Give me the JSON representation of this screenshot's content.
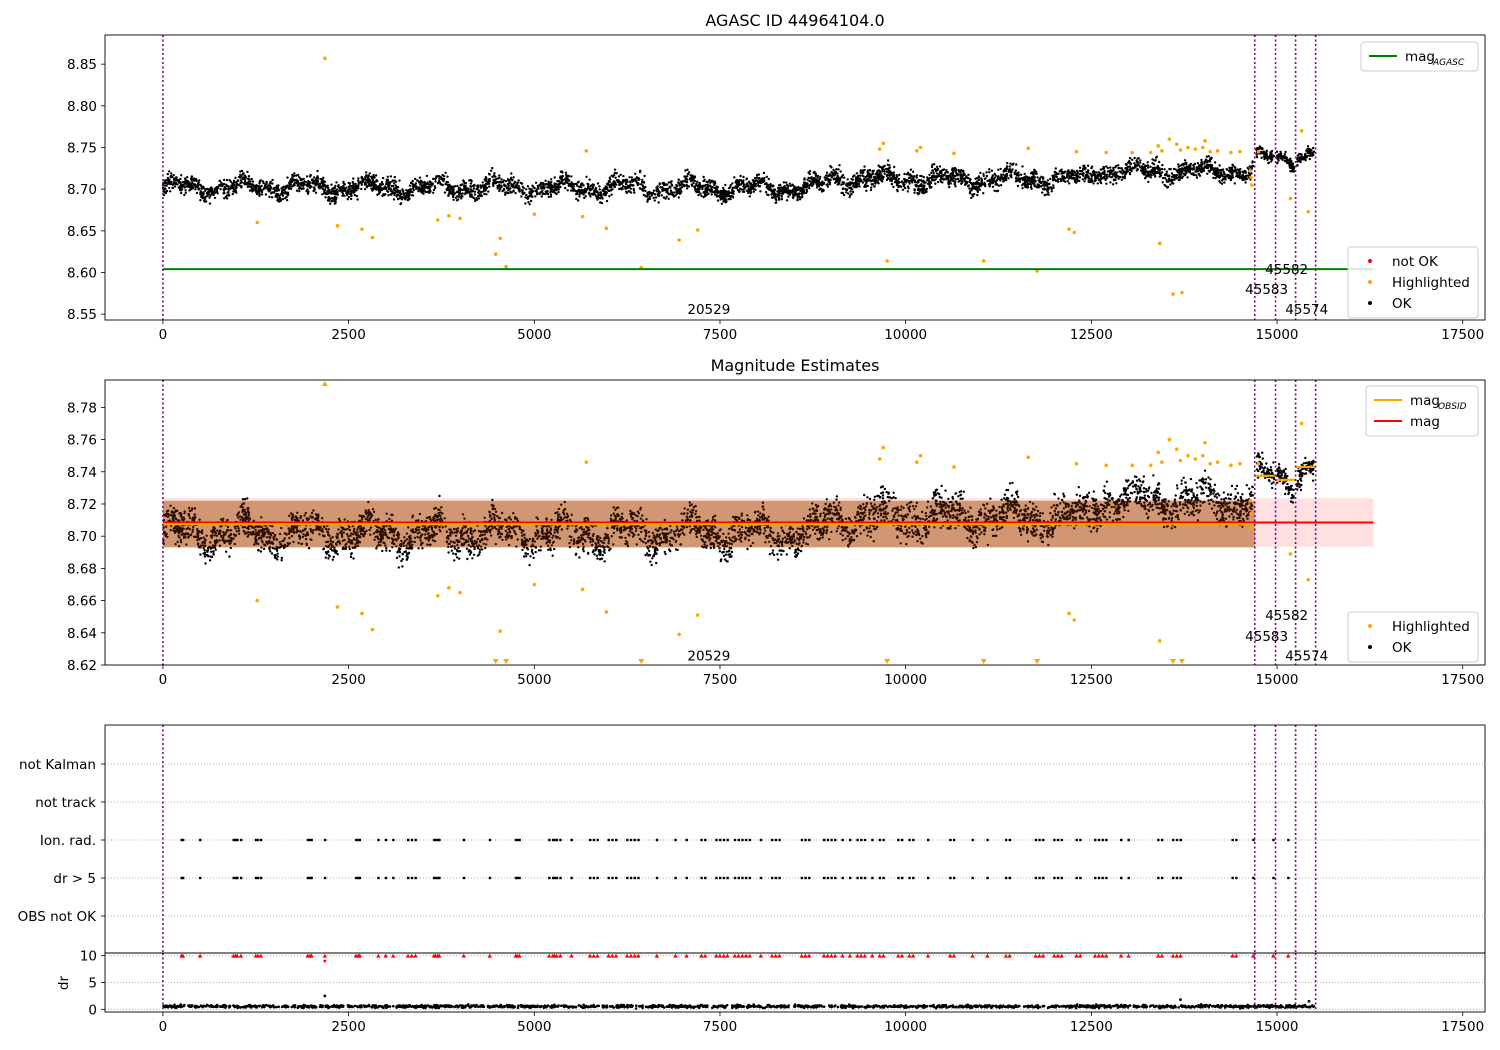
{
  "chart_data": [
    {
      "type": "scatter",
      "title": "AGASC ID 44964104.0",
      "xlim": [
        -780,
        17800
      ],
      "ylim": [
        8.543,
        8.885
      ],
      "xticks": [
        0,
        2500,
        5000,
        7500,
        10000,
        12500,
        15000,
        17500
      ],
      "yticks": [
        8.55,
        8.6,
        8.65,
        8.7,
        8.75,
        8.8,
        8.85
      ],
      "ytick_decimals": 2,
      "obs_lines": [
        0,
        14700,
        14980,
        15250,
        15520
      ],
      "obs_labels": [
        {
          "text": "20529",
          "x": 7350,
          "y": 8.556
        },
        {
          "text": "45582",
          "x": 15130,
          "y": 8.604
        },
        {
          "text": "45583",
          "x": 14860,
          "y": 8.58
        },
        {
          "text": "45574",
          "x": 15400,
          "y": 8.556
        }
      ],
      "hlines": [
        {
          "name": "mag_AGASC",
          "value": 8.604,
          "color": "#008000",
          "x_end": 16300
        }
      ],
      "legends": [
        {
          "loc": "upper right",
          "items": [
            {
              "label": "mag",
              "sub": "AGASC",
              "kind": "line",
              "color": "#008000"
            }
          ]
        },
        {
          "loc": "lower right",
          "items": [
            {
              "label": "not OK",
              "kind": "dot",
              "color": "#ff0000"
            },
            {
              "label": "Highlighted",
              "kind": "dot",
              "color": "#ffa500"
            },
            {
              "label": "OK",
              "kind": "dot",
              "color": "#000000"
            }
          ]
        }
      ],
      "series": [
        {
          "name": "OK",
          "color": "#000000",
          "segments": [
            {
              "x_start": 0,
              "x_end": 8900,
              "mean": 8.702,
              "spread": 0.012
            },
            {
              "x_start": 8900,
              "x_end": 12500,
              "mean": 8.712,
              "spread": 0.013
            },
            {
              "x_start": 12500,
              "x_end": 14680,
              "mean": 8.722,
              "spread": 0.012
            },
            {
              "x_start": 14720,
              "x_end": 14960,
              "mean": 8.737,
              "spread": 0.008
            },
            {
              "x_start": 15000,
              "x_end": 15230,
              "mean": 8.735,
              "spread": 0.008
            },
            {
              "x_start": 15270,
              "x_end": 15500,
              "mean": 8.743,
              "spread": 0.008
            }
          ]
        },
        {
          "name": "Highlighted",
          "color": "#ffa500",
          "points": [
            [
              1270,
              8.66
            ],
            [
              2180,
              8.857
            ],
            [
              2350,
              8.656
            ],
            [
              2680,
              8.652
            ],
            [
              2820,
              8.642
            ],
            [
              3700,
              8.663
            ],
            [
              3850,
              8.668
            ],
            [
              4000,
              8.665
            ],
            [
              4480,
              8.622
            ],
            [
              4540,
              8.641
            ],
            [
              4620,
              8.607
            ],
            [
              5000,
              8.67
            ],
            [
              5650,
              8.667
            ],
            [
              5700,
              8.746
            ],
            [
              5970,
              8.653
            ],
            [
              6440,
              8.606
            ],
            [
              6950,
              8.639
            ],
            [
              7200,
              8.651
            ],
            [
              9650,
              8.748
            ],
            [
              9700,
              8.755
            ],
            [
              9750,
              8.614
            ],
            [
              10150,
              8.746
            ],
            [
              10200,
              8.75
            ],
            [
              10650,
              8.743
            ],
            [
              11050,
              8.614
            ],
            [
              11650,
              8.749
            ],
            [
              11770,
              8.602
            ],
            [
              12200,
              8.652
            ],
            [
              12270,
              8.648
            ],
            [
              12300,
              8.745
            ],
            [
              12700,
              8.744
            ],
            [
              13050,
              8.744
            ],
            [
              13300,
              8.744
            ],
            [
              13400,
              8.752
            ],
            [
              13420,
              8.635
            ],
            [
              13450,
              8.746
            ],
            [
              13600,
              8.574
            ],
            [
              13650,
              8.754
            ],
            [
              13700,
              8.747
            ],
            [
              13720,
              8.576
            ],
            [
              13800,
              8.75
            ],
            [
              13900,
              8.748
            ],
            [
              14000,
              8.75
            ],
            [
              14100,
              8.745
            ],
            [
              14200,
              8.746
            ],
            [
              14380,
              8.744
            ],
            [
              14500,
              8.745
            ],
            [
              14640,
              8.722
            ],
            [
              14650,
              8.714
            ],
            [
              14660,
              8.705
            ],
            [
              14750,
              8.745
            ],
            [
              15180,
              8.689
            ],
            [
              15330,
              8.77
            ],
            [
              15420,
              8.673
            ],
            [
              14030,
              8.758
            ],
            [
              13550,
              8.76
            ]
          ]
        }
      ]
    },
    {
      "type": "scatter",
      "title": "Magnitude Estimates",
      "xlim": [
        -780,
        17800
      ],
      "ylim": [
        8.62,
        8.797
      ],
      "xticks": [
        0,
        2500,
        5000,
        7500,
        10000,
        12500,
        15000,
        17500
      ],
      "yticks": [
        8.62,
        8.64,
        8.66,
        8.68,
        8.7,
        8.72,
        8.74,
        8.76,
        8.78
      ],
      "ytick_decimals": 2,
      "obs_lines": [
        0,
        14700,
        14980,
        15250,
        15520
      ],
      "obs_labels": [
        {
          "text": "20529",
          "x": 7350,
          "y": 8.626
        },
        {
          "text": "45582",
          "x": 15130,
          "y": 8.651
        },
        {
          "text": "45583",
          "x": 14860,
          "y": 8.638
        },
        {
          "text": "45574",
          "x": 15400,
          "y": 8.626
        }
      ],
      "hlines": [
        {
          "name": "mag",
          "value": 8.7085,
          "color": "#ff0000",
          "x_end": 16300
        }
      ],
      "bands": [
        {
          "name": "mag_band",
          "y0": 8.6935,
          "y1": 8.7235,
          "x_start": 0,
          "x_end": 16300,
          "color": "rgba(255,0,0,0.12)"
        },
        {
          "name": "mag_obsid_band",
          "y0": 8.693,
          "y1": 8.722,
          "x_start": 0,
          "x_end": 14700,
          "color": "rgba(255,165,0,0.22)"
        }
      ],
      "step_lines": [
        {
          "name": "mag_OBSID",
          "color": "#ffa500",
          "segments": [
            [
              0,
              14700,
              8.7075
            ],
            [
              14700,
              14980,
              8.7375
            ],
            [
              14980,
              15250,
              8.735
            ],
            [
              15250,
              15520,
              8.743
            ]
          ]
        }
      ],
      "legends": [
        {
          "loc": "upper right",
          "items": [
            {
              "label": "mag",
              "sub": "OBSID",
              "kind": "line",
              "color": "#ffa500"
            },
            {
              "label": "mag",
              "kind": "line",
              "color": "#ff0000"
            }
          ]
        },
        {
          "loc": "lower right",
          "items": [
            {
              "label": "Highlighted",
              "kind": "dot",
              "color": "#ffa500"
            },
            {
              "label": "OK",
              "kind": "dot",
              "color": "#000000"
            }
          ]
        }
      ],
      "series": [
        {
          "name": "OK",
          "color": "#000000",
          "segments": [
            {
              "x_start": 0,
              "x_end": 8900,
              "mean": 8.702,
              "spread": 0.012
            },
            {
              "x_start": 8900,
              "x_end": 12500,
              "mean": 8.712,
              "spread": 0.013
            },
            {
              "x_start": 12500,
              "x_end": 14680,
              "mean": 8.722,
              "spread": 0.012
            },
            {
              "x_start": 14720,
              "x_end": 14960,
              "mean": 8.737,
              "spread": 0.008
            },
            {
              "x_start": 15000,
              "x_end": 15230,
              "mean": 8.735,
              "spread": 0.008
            },
            {
              "x_start": 15270,
              "x_end": 15500,
              "mean": 8.743,
              "spread": 0.008
            }
          ]
        },
        {
          "name": "Highlighted",
          "color": "#ffa500",
          "points": [
            [
              1270,
              8.66
            ],
            [
              2350,
              8.656
            ],
            [
              2680,
              8.652
            ],
            [
              2820,
              8.642
            ],
            [
              3700,
              8.663
            ],
            [
              3850,
              8.668
            ],
            [
              4000,
              8.665
            ],
            [
              4540,
              8.641
            ],
            [
              5000,
              8.67
            ],
            [
              5650,
              8.667
            ],
            [
              5700,
              8.746
            ],
            [
              5970,
              8.653
            ],
            [
              6950,
              8.639
            ],
            [
              7200,
              8.651
            ],
            [
              9650,
              8.748
            ],
            [
              9700,
              8.755
            ],
            [
              10150,
              8.746
            ],
            [
              10200,
              8.75
            ],
            [
              10650,
              8.743
            ],
            [
              11650,
              8.749
            ],
            [
              12200,
              8.652
            ],
            [
              12270,
              8.648
            ],
            [
              12300,
              8.745
            ],
            [
              12700,
              8.744
            ],
            [
              13050,
              8.744
            ],
            [
              13300,
              8.744
            ],
            [
              13400,
              8.752
            ],
            [
              13420,
              8.635
            ],
            [
              13450,
              8.746
            ],
            [
              13650,
              8.754
            ],
            [
              13700,
              8.747
            ],
            [
              13800,
              8.75
            ],
            [
              13900,
              8.748
            ],
            [
              14000,
              8.75
            ],
            [
              14100,
              8.745
            ],
            [
              14200,
              8.746
            ],
            [
              14380,
              8.744
            ],
            [
              14500,
              8.745
            ],
            [
              14640,
              8.722
            ],
            [
              14650,
              8.714
            ],
            [
              14660,
              8.705
            ],
            [
              14750,
              8.745
            ],
            [
              15180,
              8.689
            ],
            [
              15330,
              8.77
            ],
            [
              15420,
              8.673
            ],
            [
              14030,
              8.758
            ],
            [
              13550,
              8.76
            ]
          ]
        },
        {
          "name": "Highlighted (out of range)",
          "color": "#ffa500",
          "markers": [
            [
              2180,
              "up"
            ],
            [
              4480,
              "down"
            ],
            [
              4620,
              "down"
            ],
            [
              6440,
              "down"
            ],
            [
              9750,
              "down"
            ],
            [
              11050,
              "down"
            ],
            [
              11770,
              "down"
            ],
            [
              13600,
              "down"
            ],
            [
              13720,
              "down"
            ]
          ]
        }
      ]
    },
    {
      "type": "scatter",
      "title": "",
      "xlim": [
        -780,
        17800
      ],
      "categories": [
        "not Kalman",
        "not track",
        "Ion. rad.",
        "dr > 5",
        "OBS not OK"
      ],
      "obs_lines": [
        0,
        14700,
        14980,
        15250,
        15520
      ],
      "flag_times": [
        250,
        270,
        500,
        950,
        980,
        1000,
        1050,
        1250,
        1280,
        1320,
        1950,
        1980,
        2000,
        2180,
        2600,
        2630,
        2650,
        2900,
        3000,
        3100,
        3300,
        3350,
        3400,
        3650,
        3670,
        3700,
        3720,
        4050,
        4400,
        4750,
        4770,
        4800,
        5200,
        5250,
        5270,
        5300,
        5350,
        5500,
        5750,
        5800,
        5850,
        6000,
        6050,
        6100,
        6250,
        6300,
        6350,
        6400,
        6650,
        6900,
        7050,
        7250,
        7300,
        7450,
        7500,
        7550,
        7600,
        7700,
        7750,
        7800,
        7850,
        7900,
        8050,
        8200,
        8250,
        8300,
        8600,
        8650,
        8700,
        8900,
        8950,
        9000,
        9050,
        9150,
        9250,
        9350,
        9400,
        9450,
        9550,
        9650,
        9700,
        9900,
        9950,
        10050,
        10100,
        10300,
        10600,
        10650,
        10900,
        11100,
        11350,
        11400,
        11750,
        11800,
        11850,
        12000,
        12050,
        12100,
        12300,
        12350,
        12550,
        12600,
        12650,
        12700,
        12900,
        13000,
        13400,
        13450,
        13600,
        13650,
        13700,
        14400,
        14450,
        14680,
        14950,
        15150
      ]
    },
    {
      "type": "scatter",
      "ylabel": "dr",
      "xlim": [
        -780,
        17800
      ],
      "ylim": [
        -0.5,
        10.5
      ],
      "xticks": [
        0,
        2500,
        5000,
        7500,
        10000,
        12500,
        15000,
        17500
      ],
      "yticks": [
        0,
        5,
        10
      ],
      "ytick_decimals": 0,
      "obs_lines": [
        0,
        14700,
        14980,
        15250,
        15520
      ],
      "outliers": [
        [
          2180,
          2.5
        ],
        [
          2180,
          9.0
        ],
        [
          13700,
          1.8
        ],
        [
          15430,
          1.5
        ]
      ]
    }
  ]
}
